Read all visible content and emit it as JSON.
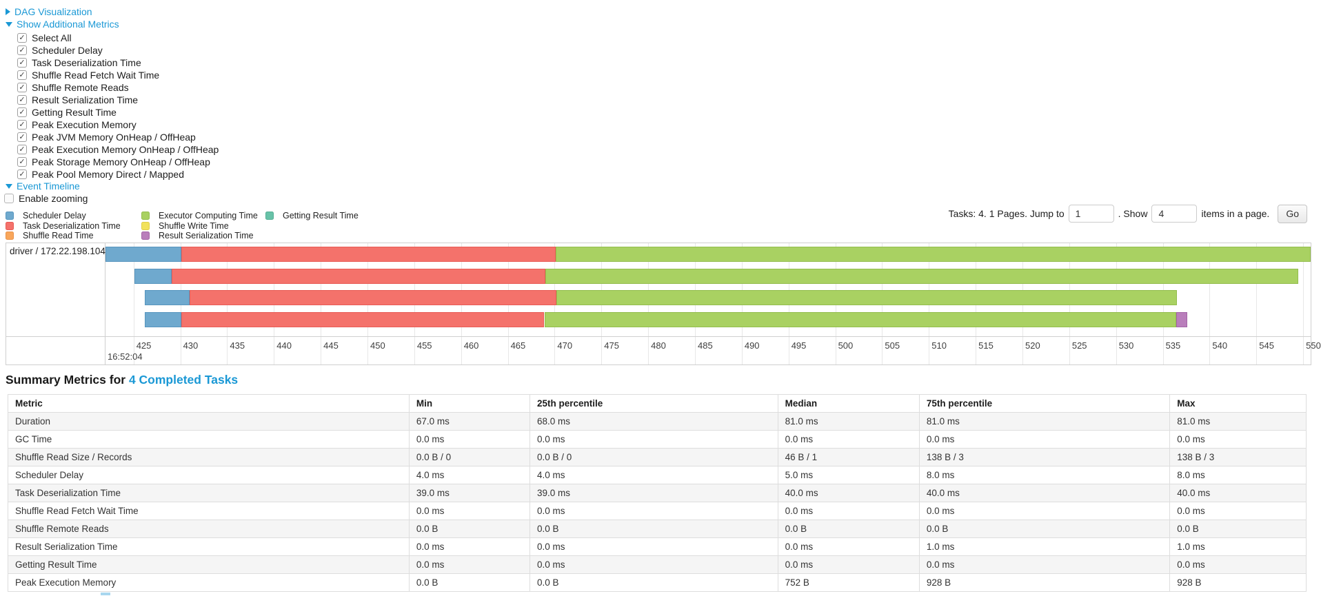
{
  "toggles": {
    "dag": "DAG Visualization",
    "metrics": "Show Additional Metrics",
    "timeline": "Event Timeline"
  },
  "metric_options": {
    "items": [
      {
        "label": "Select All",
        "checked": true
      },
      {
        "label": "Scheduler Delay",
        "checked": true
      },
      {
        "label": "Task Deserialization Time",
        "checked": true
      },
      {
        "label": "Shuffle Read Fetch Wait Time",
        "checked": true
      },
      {
        "label": "Shuffle Remote Reads",
        "checked": true
      },
      {
        "label": "Result Serialization Time",
        "checked": true
      },
      {
        "label": "Getting Result Time",
        "checked": true
      },
      {
        "label": "Peak Execution Memory",
        "checked": true
      },
      {
        "label": "Peak JVM Memory OnHeap / OffHeap",
        "checked": true
      },
      {
        "label": "Peak Execution Memory OnHeap / OffHeap",
        "checked": true
      },
      {
        "label": "Peak Storage Memory OnHeap / OffHeap",
        "checked": true
      },
      {
        "label": "Peak Pool Memory Direct / Mapped",
        "checked": true
      }
    ]
  },
  "enable_zooming": {
    "label": "Enable zooming",
    "checked": false
  },
  "legend": {
    "columns": [
      [
        {
          "kind": "scheduler_delay",
          "label": "Scheduler Delay"
        },
        {
          "kind": "task_deserialization",
          "label": "Task Deserialization Time"
        },
        {
          "kind": "shuffle_read",
          "label": "Shuffle Read Time"
        }
      ],
      [
        {
          "kind": "executor_computing",
          "label": "Executor Computing Time"
        },
        {
          "kind": "shuffle_write",
          "label": "Shuffle Write Time"
        },
        {
          "kind": "result_serialization",
          "label": "Result Serialization Time"
        }
      ],
      [
        {
          "kind": "getting_result",
          "label": "Getting Result Time"
        }
      ]
    ]
  },
  "pagination": {
    "prefix": "Tasks: 4. 1 Pages. Jump to",
    "jump_value": "1",
    "between": ". Show",
    "show_value": "4",
    "suffix": "items in a page.",
    "go_label": "Go"
  },
  "chart_data": {
    "type": "timeline",
    "row_label": "driver / 172.22.198.104",
    "x_min": 422.0,
    "x_max": 550.8,
    "x_unit": "seconds",
    "ticks": [
      425,
      430,
      435,
      440,
      445,
      450,
      455,
      460,
      465,
      470,
      475,
      480,
      485,
      490,
      495,
      500,
      505,
      510,
      515,
      520,
      525,
      530,
      535,
      540,
      545,
      550
    ],
    "major_tick_label": "16:52:04",
    "colors": {
      "scheduler_delay": {
        "fill": "#6FA9CE",
        "border": "#5795BE"
      },
      "task_deserialization": {
        "fill": "#F4726B",
        "border": "#E85B55"
      },
      "shuffle_read": {
        "fill": "#F9A65B",
        "border": "#E8914A"
      },
      "executor_computing": {
        "fill": "#A9D162",
        "border": "#93BD4D"
      },
      "shuffle_write": {
        "fill": "#F2E25C",
        "border": "#DFCE49"
      },
      "result_serialization": {
        "fill": "#B97EBB",
        "border": "#A364A6"
      },
      "getting_result": {
        "fill": "#68C2A8",
        "border": "#54AE94"
      }
    },
    "tasks": [
      {
        "segments": [
          {
            "kind": "scheduler_delay",
            "start": 422.0,
            "end": 430.1
          },
          {
            "kind": "task_deserialization",
            "start": 430.1,
            "end": 470.1
          },
          {
            "kind": "executor_computing",
            "start": 470.1,
            "end": 550.8
          }
        ]
      },
      {
        "segments": [
          {
            "kind": "scheduler_delay",
            "start": 425.1,
            "end": 429.1
          },
          {
            "kind": "task_deserialization",
            "start": 429.1,
            "end": 469.0
          },
          {
            "kind": "executor_computing",
            "start": 469.0,
            "end": 549.5
          }
        ]
      },
      {
        "segments": [
          {
            "kind": "scheduler_delay",
            "start": 426.2,
            "end": 431.0
          },
          {
            "kind": "task_deserialization",
            "start": 431.0,
            "end": 470.2
          },
          {
            "kind": "executor_computing",
            "start": 470.2,
            "end": 536.5
          }
        ]
      },
      {
        "segments": [
          {
            "kind": "scheduler_delay",
            "start": 426.2,
            "end": 430.1
          },
          {
            "kind": "task_deserialization",
            "start": 430.1,
            "end": 468.9
          },
          {
            "kind": "executor_computing",
            "start": 468.9,
            "end": 536.4
          },
          {
            "kind": "result_serialization",
            "start": 536.4,
            "end": 537.6
          }
        ]
      }
    ]
  },
  "summary": {
    "heading_prefix": "Summary Metrics for ",
    "heading_link": "4 Completed Tasks",
    "columns": [
      "Metric",
      "Min",
      "25th percentile",
      "Median",
      "75th percentile",
      "Max"
    ],
    "rows": [
      {
        "metric": "Duration",
        "values": [
          "67.0 ms",
          "68.0 ms",
          "81.0 ms",
          "81.0 ms",
          "81.0 ms"
        ]
      },
      {
        "metric": "GC Time",
        "values": [
          "0.0 ms",
          "0.0 ms",
          "0.0 ms",
          "0.0 ms",
          "0.0 ms"
        ]
      },
      {
        "metric": "Shuffle Read Size / Records",
        "values": [
          "0.0 B / 0",
          "0.0 B / 0",
          "46 B / 1",
          "138 B / 3",
          "138 B / 3"
        ]
      },
      {
        "metric": "Scheduler Delay",
        "values": [
          "4.0 ms",
          "4.0 ms",
          "5.0 ms",
          "8.0 ms",
          "8.0 ms"
        ]
      },
      {
        "metric": "Task Deserialization Time",
        "values": [
          "39.0 ms",
          "39.0 ms",
          "40.0 ms",
          "40.0 ms",
          "40.0 ms"
        ]
      },
      {
        "metric": "Shuffle Read Fetch Wait Time",
        "values": [
          "0.0 ms",
          "0.0 ms",
          "0.0 ms",
          "0.0 ms",
          "0.0 ms"
        ]
      },
      {
        "metric": "Shuffle Remote Reads",
        "values": [
          "0.0 B",
          "0.0 B",
          "0.0 B",
          "0.0 B",
          "0.0 B"
        ]
      },
      {
        "metric": "Result Serialization Time",
        "values": [
          "0.0 ms",
          "0.0 ms",
          "0.0 ms",
          "1.0 ms",
          "1.0 ms"
        ]
      },
      {
        "metric": "Getting Result Time",
        "values": [
          "0.0 ms",
          "0.0 ms",
          "0.0 ms",
          "0.0 ms",
          "0.0 ms"
        ]
      },
      {
        "metric": "Peak Execution Memory",
        "values": [
          "0.0 B",
          "0.0 B",
          "752 B",
          "928 B",
          "928 B"
        ]
      }
    ]
  }
}
